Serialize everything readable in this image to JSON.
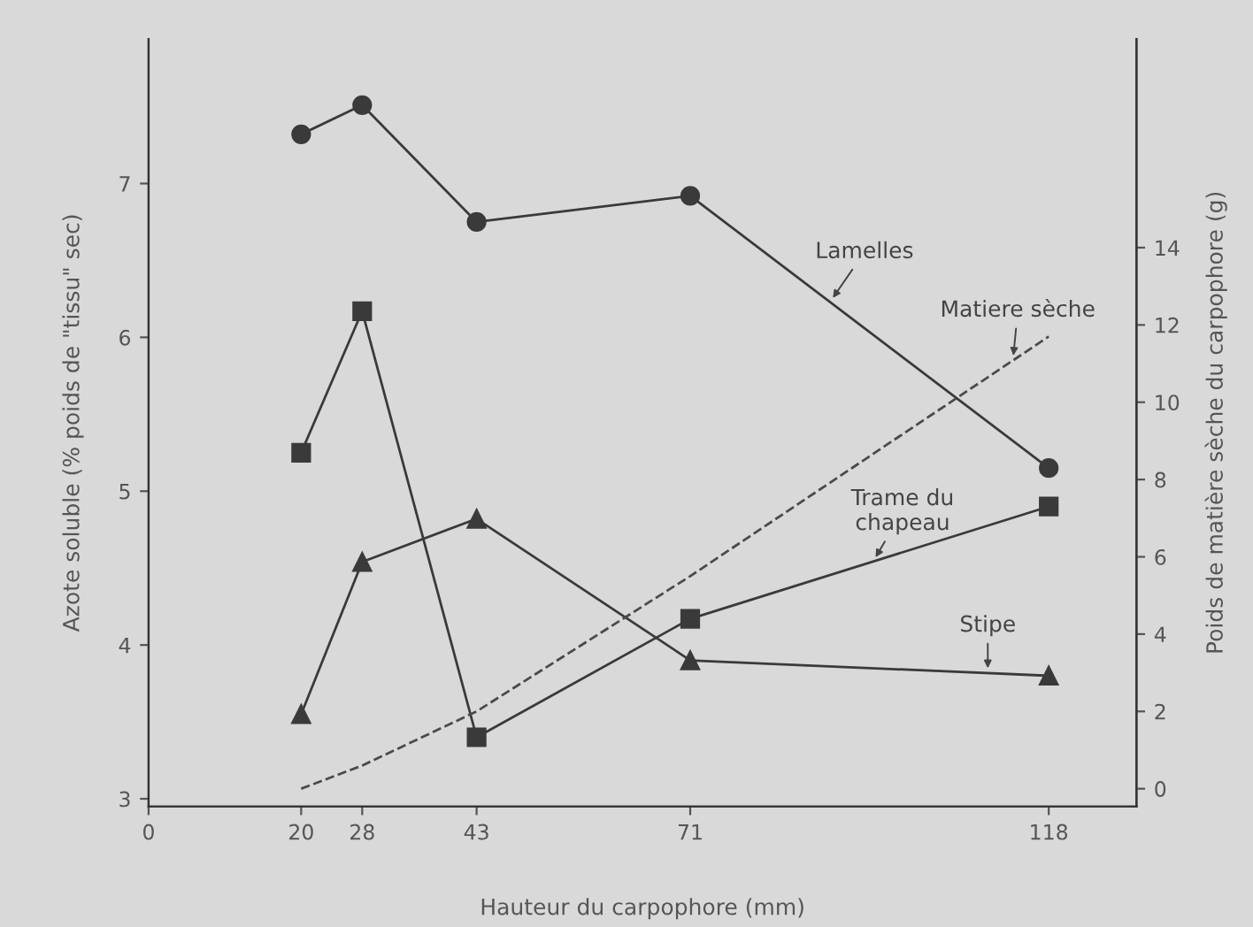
{
  "chart_data": {
    "type": "line",
    "xlabel": "Hauteur du carpophore (mm)",
    "ylabel": "Azote soluble (% poids de \"tissu\" sec)",
    "y2label": "Poids de matière sèche du carpophore (g)",
    "x": [
      20,
      28,
      43,
      71,
      118
    ],
    "series": [
      {
        "name": "Lamelles",
        "color": "#3a3a3a",
        "marker": "circle",
        "line_style": "solid",
        "values": [
          7.32,
          7.51,
          6.75,
          6.92,
          5.15
        ]
      },
      {
        "name": "Matiere sèche",
        "color": "#4a4a4a",
        "marker": "none",
        "line_style": "dashed",
        "axis": "y2",
        "values": [
          0,
          0.6,
          2.0,
          5.5,
          11.7
        ]
      },
      {
        "name": "Trame du\nchapeau",
        "color": "#3a3a3a",
        "marker": "square",
        "line_style": "solid",
        "values": [
          5.25,
          6.17,
          3.4,
          4.17,
          4.9
        ]
      },
      {
        "name": "Stipe",
        "color": "#3a3a3a",
        "marker": "triangle",
        "line_style": "solid",
        "values": [
          3.55,
          4.54,
          4.82,
          3.9,
          3.8
        ]
      }
    ],
    "xlim": [
      0,
      129.5
    ],
    "xticks": [
      0,
      20,
      28,
      43,
      71,
      118
    ],
    "ylim": [
      2.95,
      7.94
    ],
    "yticks": [
      3,
      4,
      5,
      6,
      7
    ],
    "y2lim": [
      -0.46,
      19.4
    ],
    "y2ticks": [
      0,
      2,
      4,
      6,
      8,
      10,
      12,
      14
    ],
    "grid": false,
    "legend": false
  }
}
